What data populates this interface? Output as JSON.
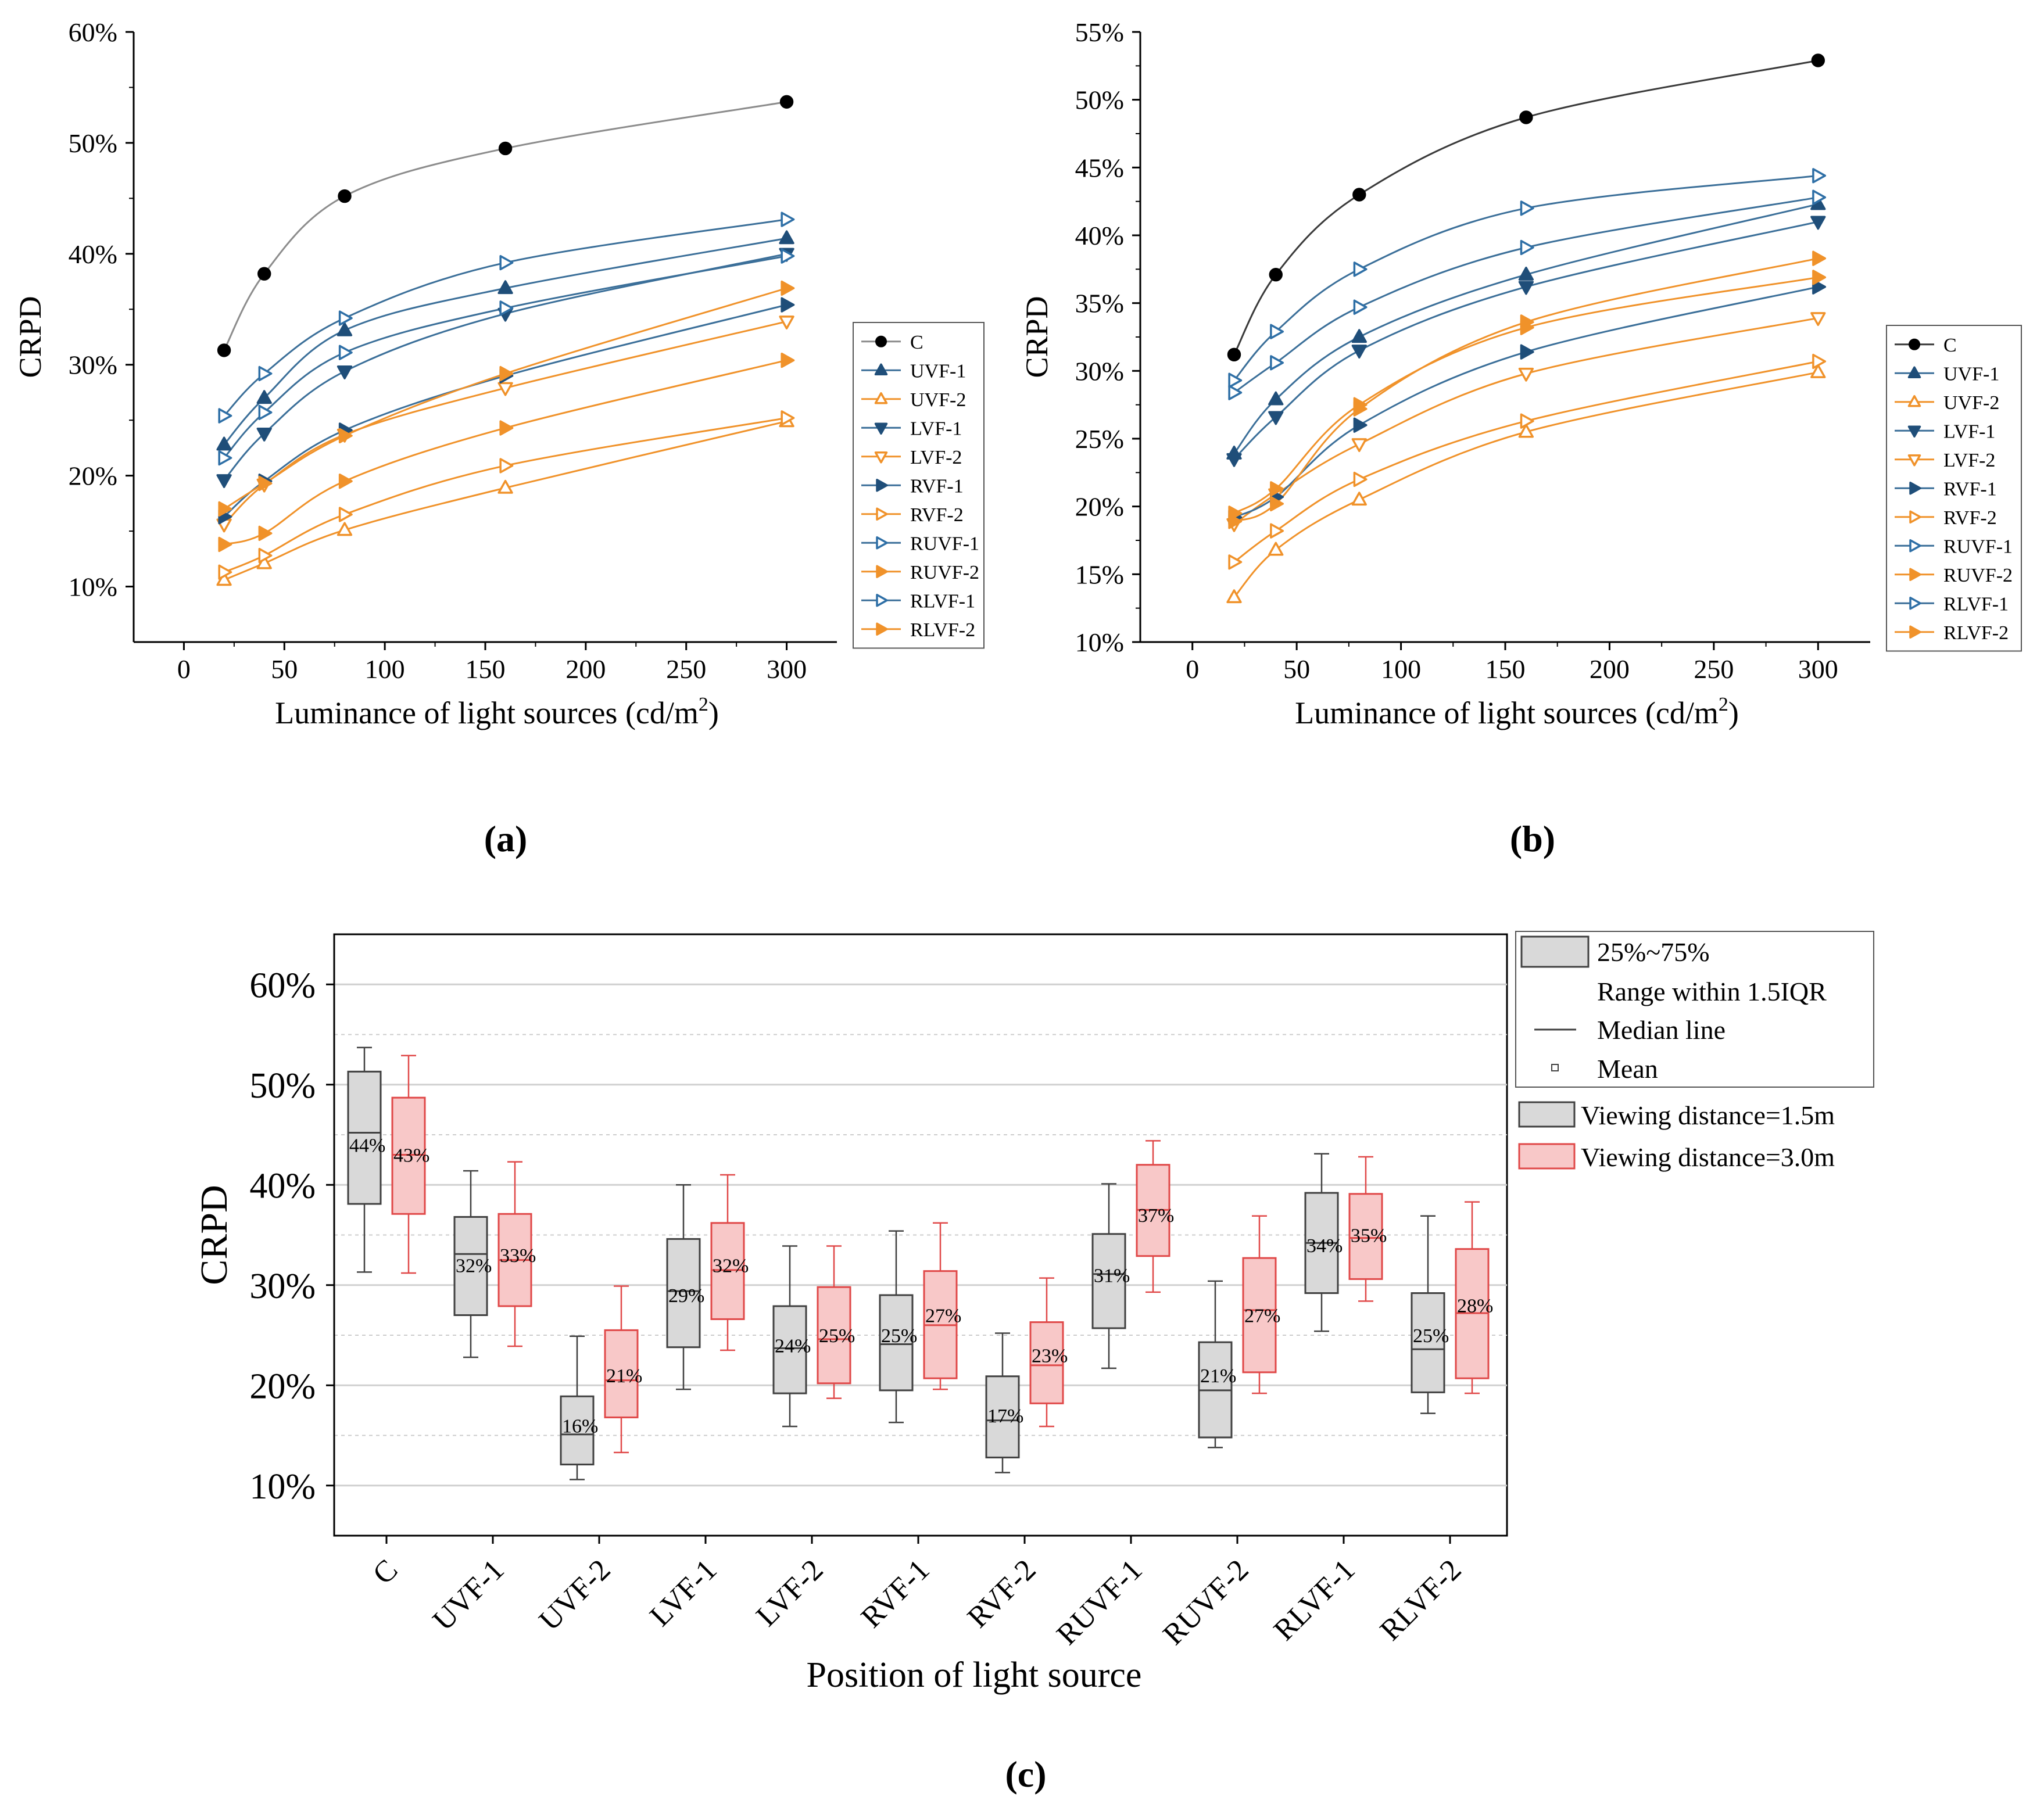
{
  "chart_data": [
    {
      "id": "a",
      "type": "line",
      "panel_label": "(a)",
      "xlabel": "Luminance of light sources (cd/m",
      "xlabel_sup": "2",
      "xlabel_tail": ")",
      "ylabel": "CRPD",
      "x": [
        20,
        40,
        80,
        160,
        300
      ],
      "xlim": [
        -25,
        325
      ],
      "ylim": [
        0.05,
        0.6
      ],
      "xticks": [
        "0",
        "50",
        "100",
        "150",
        "200",
        "250",
        "300"
      ],
      "yticks": [
        "10%",
        "20%",
        "30%",
        "40%",
        "50%",
        "60%"
      ],
      "legend_position": "right",
      "series": [
        {
          "name": "C",
          "marker": "circle",
          "filled": true,
          "color": "#000000",
          "line": "#8c8c8c",
          "values": [
            0.313,
            0.382,
            0.452,
            0.495,
            0.537
          ]
        },
        {
          "name": "UVF-1",
          "marker": "tri-up",
          "filled": true,
          "color": "#1f4e79",
          "line": "#3b6f99",
          "values": [
            0.228,
            0.27,
            0.331,
            0.369,
            0.414
          ]
        },
        {
          "name": "UVF-2",
          "marker": "tri-up",
          "filled": false,
          "color": "#f0922a",
          "line": "#f0922a",
          "values": [
            0.106,
            0.121,
            0.151,
            0.189,
            0.249
          ]
        },
        {
          "name": "LVF-1",
          "marker": "tri-down",
          "filled": true,
          "color": "#1f4e79",
          "line": "#3b6f99",
          "values": [
            0.196,
            0.238,
            0.294,
            0.346,
            0.4
          ]
        },
        {
          "name": "LVF-2",
          "marker": "tri-down",
          "filled": false,
          "color": "#f0922a",
          "line": "#f0922a",
          "values": [
            0.156,
            0.192,
            0.237,
            0.279,
            0.339
          ]
        },
        {
          "name": "RVF-1",
          "marker": "tri-right",
          "filled": true,
          "color": "#1f4e79",
          "line": "#3b6f99",
          "values": [
            0.163,
            0.195,
            0.241,
            0.29,
            0.354
          ]
        },
        {
          "name": "RVF-2",
          "marker": "tri-right",
          "filled": false,
          "color": "#f0922a",
          "line": "#f0922a",
          "values": [
            0.113,
            0.128,
            0.165,
            0.209,
            0.252
          ]
        },
        {
          "name": "RUVF-1",
          "marker": "tri-right",
          "filled": false,
          "color": "#2e6fa6",
          "line": "#3b6f99",
          "values": [
            0.254,
            0.292,
            0.342,
            0.392,
            0.431
          ]
        },
        {
          "name": "RUVF-2",
          "marker": "tri-right",
          "filled": true,
          "color": "#f0922a",
          "line": "#f0922a",
          "values": [
            0.138,
            0.148,
            0.195,
            0.243,
            0.304
          ]
        },
        {
          "name": "RLVF-1",
          "marker": "tri-right",
          "filled": false,
          "color": "#2e6fa6",
          "line": "#3b6f99",
          "values": [
            0.216,
            0.257,
            0.311,
            0.351,
            0.398
          ]
        },
        {
          "name": "RLVF-2",
          "marker": "tri-right",
          "filled": true,
          "color": "#f0922a",
          "line": "#f0922a",
          "values": [
            0.17,
            0.193,
            0.236,
            0.292,
            0.369
          ]
        }
      ]
    },
    {
      "id": "b",
      "type": "line",
      "panel_label": "(b)",
      "xlabel": "Luminance of light sources (cd/m",
      "xlabel_sup": "2",
      "xlabel_tail": ")",
      "ylabel": "CRPD",
      "x": [
        20,
        40,
        80,
        160,
        300
      ],
      "xlim": [
        -25,
        325
      ],
      "ylim": [
        0.1,
        0.55
      ],
      "xticks": [
        "0",
        "50",
        "100",
        "150",
        "200",
        "250",
        "300"
      ],
      "yticks": [
        "10%",
        "15%",
        "20%",
        "25%",
        "30%",
        "35%",
        "40%",
        "45%",
        "50%",
        "55%"
      ],
      "legend_position": "right",
      "series": [
        {
          "name": "C",
          "marker": "circle",
          "filled": true,
          "color": "#000000",
          "line": "#3a3a3a",
          "values": [
            0.312,
            0.371,
            0.43,
            0.487,
            0.529
          ]
        },
        {
          "name": "UVF-1",
          "marker": "tri-up",
          "filled": true,
          "color": "#1f4e79",
          "line": "#3b6f99",
          "values": [
            0.239,
            0.279,
            0.325,
            0.371,
            0.423
          ]
        },
        {
          "name": "UVF-2",
          "marker": "tri-up",
          "filled": false,
          "color": "#f0922a",
          "line": "#f0922a",
          "values": [
            0.133,
            0.168,
            0.205,
            0.255,
            0.299
          ]
        },
        {
          "name": "LVF-1",
          "marker": "tri-down",
          "filled": true,
          "color": "#1f4e79",
          "line": "#3b6f99",
          "values": [
            0.235,
            0.266,
            0.315,
            0.362,
            0.41
          ]
        },
        {
          "name": "LVF-2",
          "marker": "tri-down",
          "filled": false,
          "color": "#f0922a",
          "line": "#f0922a",
          "values": [
            0.187,
            0.209,
            0.246,
            0.298,
            0.339
          ]
        },
        {
          "name": "RVF-1",
          "marker": "tri-right",
          "filled": true,
          "color": "#1f4e79",
          "line": "#3b6f99",
          "values": [
            0.192,
            0.207,
            0.26,
            0.314,
            0.362
          ]
        },
        {
          "name": "RVF-2",
          "marker": "tri-right",
          "filled": false,
          "color": "#f0922a",
          "line": "#f0922a",
          "values": [
            0.159,
            0.182,
            0.22,
            0.263,
            0.307
          ]
        },
        {
          "name": "RUVF-1",
          "marker": "tri-right",
          "filled": false,
          "color": "#2e6fa6",
          "line": "#3b6f99",
          "values": [
            0.293,
            0.329,
            0.375,
            0.42,
            0.444
          ]
        },
        {
          "name": "RUVF-2",
          "marker": "tri-right",
          "filled": true,
          "color": "#f0922a",
          "line": "#f0922a",
          "values": [
            0.195,
            0.213,
            0.275,
            0.332,
            0.369
          ]
        },
        {
          "name": "RLVF-1",
          "marker": "tri-right",
          "filled": false,
          "color": "#2e6fa6",
          "line": "#3b6f99",
          "values": [
            0.284,
            0.306,
            0.347,
            0.391,
            0.428
          ]
        },
        {
          "name": "RLVF-2",
          "marker": "tri-right",
          "filled": true,
          "color": "#f0922a",
          "line": "#f0922a",
          "values": [
            0.189,
            0.202,
            0.272,
            0.336,
            0.383
          ]
        }
      ]
    },
    {
      "id": "c",
      "type": "box",
      "panel_label": "(c)",
      "xlabel": "Position of light source",
      "ylabel": "CRPD",
      "ylim": [
        0.05,
        0.65
      ],
      "yticks": [
        "10%",
        "20%",
        "30%",
        "40%",
        "50%",
        "60%"
      ],
      "categories": [
        "C",
        "UVF-1",
        "UVF-2",
        "LVF-1",
        "LVF-2",
        "RVF-1",
        "RVF-2",
        "RUVF-1",
        "RUVF-2",
        "RLVF-1",
        "RLVF-2"
      ],
      "legend": {
        "items": [
          "25%~75%",
          "Range within 1.5IQR",
          "Median line",
          "Mean"
        ],
        "series_items": [
          "Viewing distance=1.5m",
          "Viewing distance=3.0m"
        ]
      },
      "series": [
        {
          "name": "Viewing distance=1.5m",
          "fill": "#d9d9d9",
          "stroke": "#404040",
          "boxes": [
            {
              "min": 0.313,
              "q1": 0.381,
              "median": 0.452,
              "q3": 0.513,
              "max": 0.537,
              "mean": 0.44,
              "label": "44%"
            },
            {
              "min": 0.228,
              "q1": 0.27,
              "median": 0.331,
              "q3": 0.368,
              "max": 0.414,
              "mean": 0.32,
              "label": "32%"
            },
            {
              "min": 0.106,
              "q1": 0.121,
              "median": 0.151,
              "q3": 0.189,
              "max": 0.249,
              "mean": 0.16,
              "label": "16%"
            },
            {
              "min": 0.196,
              "q1": 0.238,
              "median": 0.294,
              "q3": 0.346,
              "max": 0.4,
              "mean": 0.29,
              "label": "29%"
            },
            {
              "min": 0.159,
              "q1": 0.192,
              "median": 0.237,
              "q3": 0.279,
              "max": 0.339,
              "mean": 0.24,
              "label": "24%"
            },
            {
              "min": 0.163,
              "q1": 0.195,
              "median": 0.241,
              "q3": 0.29,
              "max": 0.354,
              "mean": 0.25,
              "label": "25%"
            },
            {
              "min": 0.113,
              "q1": 0.128,
              "median": 0.165,
              "q3": 0.209,
              "max": 0.252,
              "mean": 0.17,
              "label": "17%"
            },
            {
              "min": 0.217,
              "q1": 0.257,
              "median": 0.311,
              "q3": 0.351,
              "max": 0.401,
              "mean": 0.31,
              "label": "31%"
            },
            {
              "min": 0.138,
              "q1": 0.148,
              "median": 0.195,
              "q3": 0.243,
              "max": 0.304,
              "mean": 0.21,
              "label": "21%"
            },
            {
              "min": 0.254,
              "q1": 0.292,
              "median": 0.342,
              "q3": 0.392,
              "max": 0.431,
              "mean": 0.34,
              "label": "34%"
            },
            {
              "min": 0.172,
              "q1": 0.193,
              "median": 0.236,
              "q3": 0.292,
              "max": 0.369,
              "mean": 0.25,
              "label": "25%"
            }
          ]
        },
        {
          "name": "Viewing distance=3.0m",
          "fill": "#f8c8c8",
          "stroke": "#e04848",
          "boxes": [
            {
              "min": 0.312,
              "q1": 0.371,
              "median": 0.43,
              "q3": 0.487,
              "max": 0.529,
              "mean": 0.43,
              "label": "43%"
            },
            {
              "min": 0.239,
              "q1": 0.279,
              "median": 0.325,
              "q3": 0.371,
              "max": 0.423,
              "mean": 0.33,
              "label": "33%"
            },
            {
              "min": 0.133,
              "q1": 0.168,
              "median": 0.205,
              "q3": 0.255,
              "max": 0.299,
              "mean": 0.21,
              "label": "21%"
            },
            {
              "min": 0.235,
              "q1": 0.266,
              "median": 0.315,
              "q3": 0.362,
              "max": 0.41,
              "mean": 0.32,
              "label": "32%"
            },
            {
              "min": 0.187,
              "q1": 0.202,
              "median": 0.246,
              "q3": 0.298,
              "max": 0.339,
              "mean": 0.25,
              "label": "25%"
            },
            {
              "min": 0.196,
              "q1": 0.207,
              "median": 0.26,
              "q3": 0.314,
              "max": 0.362,
              "mean": 0.27,
              "label": "27%"
            },
            {
              "min": 0.159,
              "q1": 0.182,
              "median": 0.22,
              "q3": 0.263,
              "max": 0.307,
              "mean": 0.23,
              "label": "23%"
            },
            {
              "min": 0.293,
              "q1": 0.329,
              "median": 0.375,
              "q3": 0.42,
              "max": 0.444,
              "mean": 0.37,
              "label": "37%"
            },
            {
              "min": 0.192,
              "q1": 0.213,
              "median": 0.275,
              "q3": 0.327,
              "max": 0.369,
              "mean": 0.27,
              "label": "27%"
            },
            {
              "min": 0.284,
              "q1": 0.306,
              "median": 0.347,
              "q3": 0.391,
              "max": 0.428,
              "mean": 0.35,
              "label": "35%"
            },
            {
              "min": 0.192,
              "q1": 0.207,
              "median": 0.272,
              "q3": 0.336,
              "max": 0.383,
              "mean": 0.28,
              "label": "28%"
            }
          ]
        }
      ]
    }
  ]
}
